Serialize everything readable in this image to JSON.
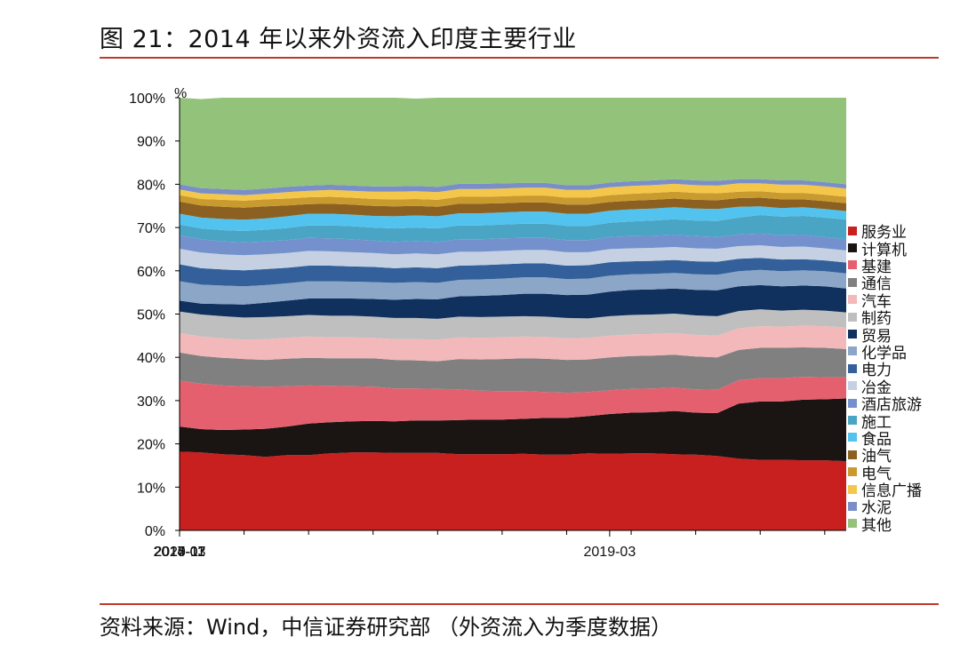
{
  "title": "图 21：2014 年以来外资流入印度主要行业",
  "source": "资料来源：Wind，中信证券研究部 （外资流入为季度数据）",
  "chart_data": {
    "type": "area",
    "stacked": true,
    "ylabel": "%",
    "ylim": [
      0,
      100
    ],
    "yticks": [
      "0%",
      "10%",
      "20%",
      "30%",
      "40%",
      "50%",
      "60%",
      "70%",
      "80%",
      "90%",
      "100%"
    ],
    "x": [
      "2014-03",
      "2014-06",
      "2014-09",
      "2014-12",
      "2015-03",
      "2015-06",
      "2015-09",
      "2015-12",
      "2016-03",
      "2016-06",
      "2016-09",
      "2016-12",
      "2017-03",
      "2017-06",
      "2017-09",
      "2017-12",
      "2018-03",
      "2018-06",
      "2018-09",
      "2018-12",
      "2019-03",
      "2019-06",
      "2019-09",
      "2019-12",
      "2020-03",
      "2020-06",
      "2020-09",
      "2020-12",
      "2021-03",
      "2021-06",
      "2021-09",
      "2021-12"
    ],
    "xtick_labels": [
      "2014-03",
      "2015-11",
      "2017-07",
      "2019-03",
      "2020-11"
    ],
    "legend_position": "right",
    "series": [
      {
        "name": "服务业",
        "color": "#c8201f",
        "values": [
          18.2,
          18.0,
          17.6,
          17.4,
          17.0,
          17.4,
          17.4,
          17.8,
          18.0,
          18.0,
          17.9,
          17.9,
          17.9,
          17.6,
          17.6,
          17.6,
          17.7,
          17.5,
          17.5,
          17.8,
          17.7,
          17.8,
          17.8,
          17.6,
          17.5,
          17.2,
          16.6,
          16.3,
          16.3,
          16.2,
          16.2,
          16.0
        ]
      },
      {
        "name": "计算机",
        "color": "#1a1412",
        "values": [
          5.8,
          5.4,
          5.6,
          5.9,
          6.5,
          6.6,
          7.3,
          7.2,
          7.2,
          7.3,
          7.3,
          7.5,
          7.5,
          7.9,
          8.0,
          8.0,
          8.1,
          8.5,
          8.5,
          8.6,
          9.2,
          9.4,
          9.5,
          10.0,
          9.7,
          9.9,
          12.7,
          13.5,
          13.5,
          14.0,
          14.1,
          14.5
        ]
      },
      {
        "name": "基建",
        "color": "#e5606e",
        "values": [
          10.6,
          10.5,
          10.3,
          10.0,
          9.7,
          9.3,
          8.8,
          8.4,
          8.1,
          7.9,
          7.6,
          7.4,
          7.3,
          7.1,
          6.7,
          6.6,
          6.4,
          6.0,
          5.8,
          5.6,
          5.5,
          5.5,
          5.5,
          5.4,
          5.4,
          5.4,
          5.4,
          5.4,
          5.4,
          5.3,
          5.1,
          4.9
        ]
      },
      {
        "name": "通信",
        "color": "#808080",
        "values": [
          6.5,
          6.4,
          6.4,
          6.3,
          6.2,
          6.4,
          6.4,
          6.4,
          6.5,
          6.6,
          6.6,
          6.5,
          6.4,
          7.0,
          7.2,
          7.4,
          7.6,
          7.7,
          7.6,
          7.5,
          7.6,
          7.6,
          7.6,
          7.6,
          7.6,
          7.5,
          7.0,
          7.0,
          7.0,
          6.8,
          6.8,
          6.5
        ]
      },
      {
        "name": "汽车",
        "color": "#f3b8b9",
        "values": [
          4.5,
          4.5,
          4.5,
          4.5,
          4.8,
          4.8,
          4.9,
          4.8,
          4.8,
          4.7,
          4.8,
          4.9,
          5.0,
          5.0,
          5.0,
          5.0,
          5.0,
          5.0,
          5.0,
          5.0,
          5.0,
          5.0,
          5.0,
          5.0,
          5.0,
          5.0,
          5.0,
          5.0,
          4.9,
          5.0,
          5.0,
          5.0
        ]
      },
      {
        "name": "制药",
        "color": "#bfbfbf",
        "values": [
          5.0,
          5.1,
          5.1,
          5.1,
          5.1,
          5.0,
          5.0,
          5.0,
          5.0,
          4.9,
          4.9,
          4.9,
          4.8,
          4.8,
          4.8,
          4.8,
          4.7,
          4.7,
          4.7,
          4.5,
          4.5,
          4.5,
          4.5,
          4.5,
          4.5,
          4.5,
          4.0,
          3.9,
          3.7,
          3.7,
          3.6,
          3.5
        ]
      },
      {
        "name": "贸易",
        "color": "#10305e",
        "values": [
          2.5,
          2.5,
          2.8,
          3.0,
          3.3,
          3.6,
          3.8,
          4.0,
          4.0,
          4.1,
          4.2,
          4.4,
          4.5,
          4.7,
          4.9,
          5.0,
          5.2,
          5.3,
          5.3,
          5.5,
          5.7,
          5.8,
          5.8,
          5.8,
          5.9,
          6.0,
          5.7,
          5.6,
          5.6,
          5.6,
          5.6,
          5.5
        ]
      },
      {
        "name": "化学品",
        "color": "#8ba6c6",
        "values": [
          4.5,
          4.4,
          4.3,
          4.2,
          4.1,
          4.0,
          4.0,
          4.0,
          3.9,
          3.9,
          3.9,
          3.9,
          3.8,
          3.8,
          3.8,
          3.8,
          3.8,
          3.8,
          3.7,
          3.7,
          3.7,
          3.6,
          3.6,
          3.6,
          3.6,
          3.6,
          3.5,
          3.5,
          3.5,
          3.5,
          3.5,
          3.5
        ]
      },
      {
        "name": "电力",
        "color": "#33609a",
        "values": [
          3.9,
          3.8,
          3.7,
          3.7,
          3.7,
          3.6,
          3.6,
          3.6,
          3.5,
          3.5,
          3.4,
          3.4,
          3.4,
          3.3,
          3.3,
          3.3,
          3.2,
          3.2,
          3.1,
          3.1,
          3.1,
          3.0,
          3.0,
          3.0,
          3.0,
          3.0,
          2.9,
          2.8,
          2.7,
          2.6,
          2.5,
          2.5
        ]
      },
      {
        "name": "冶金",
        "color": "#c5d1e2",
        "values": [
          3.6,
          3.6,
          3.5,
          3.5,
          3.4,
          3.4,
          3.4,
          3.3,
          3.3,
          3.2,
          3.2,
          3.2,
          3.2,
          3.2,
          3.1,
          3.1,
          3.1,
          3.1,
          3.1,
          3.0,
          3.0,
          3.0,
          3.0,
          3.0,
          3.0,
          3.0,
          2.9,
          2.9,
          2.9,
          2.9,
          2.8,
          2.8
        ]
      },
      {
        "name": "酒店旅游",
        "color": "#7491cd",
        "values": [
          3.1,
          3.1,
          3.0,
          3.0,
          3.0,
          3.0,
          3.0,
          3.0,
          3.0,
          2.9,
          2.9,
          2.9,
          2.9,
          2.9,
          2.9,
          2.9,
          2.8,
          2.8,
          2.8,
          2.8,
          2.8,
          2.8,
          2.8,
          2.8,
          2.8,
          2.7,
          2.7,
          2.7,
          2.7,
          2.7,
          2.6,
          2.6
        ]
      },
      {
        "name": "施工",
        "color": "#4aa4c4",
        "values": [
          2.5,
          2.5,
          2.6,
          2.6,
          2.7,
          2.8,
          2.9,
          3.0,
          3.0,
          3.0,
          3.1,
          3.1,
          3.1,
          3.2,
          3.2,
          3.2,
          3.3,
          3.3,
          3.3,
          3.3,
          3.3,
          3.4,
          3.5,
          3.6,
          3.6,
          3.7,
          3.9,
          4.3,
          4.3,
          4.4,
          4.5,
          4.5
        ]
      },
      {
        "name": "食品",
        "color": "#52c3ee",
        "values": [
          2.5,
          2.5,
          2.6,
          2.6,
          2.6,
          2.7,
          2.7,
          2.7,
          2.7,
          2.7,
          2.8,
          2.8,
          2.8,
          2.8,
          2.8,
          2.8,
          2.8,
          2.8,
          2.8,
          2.8,
          2.8,
          2.8,
          2.8,
          2.8,
          2.8,
          2.8,
          2.5,
          2.0,
          2.0,
          2.0,
          2.0,
          2.0
        ]
      },
      {
        "name": "油气",
        "color": "#8b6020",
        "values": [
          2.8,
          2.8,
          2.8,
          2.8,
          2.8,
          2.5,
          2.2,
          2.3,
          2.3,
          2.3,
          2.3,
          2.2,
          2.2,
          2.2,
          2.2,
          2.1,
          2.1,
          2.1,
          2.1,
          2.1,
          2.0,
          2.0,
          2.0,
          2.0,
          2.0,
          2.0,
          2.0,
          2.0,
          2.0,
          1.8,
          1.8,
          1.8
        ]
      },
      {
        "name": "电气",
        "color": "#c99a2e",
        "values": [
          1.5,
          1.5,
          1.6,
          1.6,
          1.6,
          1.6,
          1.6,
          1.6,
          1.6,
          1.6,
          1.6,
          1.6,
          1.6,
          1.6,
          1.6,
          1.6,
          1.6,
          1.6,
          1.6,
          1.6,
          1.6,
          1.6,
          1.6,
          1.6,
          1.6,
          1.6,
          1.5,
          1.5,
          1.5,
          1.5,
          1.5,
          1.5
        ]
      },
      {
        "name": "信息广播",
        "color": "#f4c74b",
        "values": [
          1.3,
          1.3,
          1.3,
          1.3,
          1.3,
          1.5,
          1.5,
          1.6,
          1.6,
          1.7,
          1.8,
          1.8,
          1.8,
          1.8,
          1.8,
          1.8,
          1.8,
          1.8,
          1.8,
          1.8,
          1.8,
          1.8,
          1.8,
          1.8,
          1.8,
          1.8,
          1.9,
          1.8,
          1.9,
          1.9,
          1.9,
          1.9
        ]
      },
      {
        "name": "水泥",
        "color": "#7a8fc8",
        "values": [
          1.2,
          1.2,
          1.2,
          1.2,
          1.2,
          1.2,
          1.2,
          1.2,
          1.2,
          1.2,
          1.2,
          1.2,
          1.2,
          1.2,
          1.2,
          1.2,
          1.1,
          1.1,
          1.1,
          1.1,
          1.1,
          1.1,
          1.1,
          1.1,
          1.1,
          1.1,
          1.0,
          1.0,
          1.0,
          1.0,
          1.0,
          1.0
        ]
      },
      {
        "name": "其他",
        "color": "#93c27a",
        "values": [
          20.0,
          20.6,
          21.1,
          21.3,
          21.0,
          20.6,
          20.3,
          20.1,
          20.3,
          20.5,
          20.5,
          20.2,
          20.6,
          20.1,
          19.9,
          19.8,
          19.7,
          19.7,
          20.2,
          20.2,
          19.6,
          19.4,
          19.2,
          19.3,
          20.1,
          20.2,
          20.8,
          20.8,
          20.8,
          20.1,
          20.5,
          20.0
        ]
      }
    ]
  }
}
